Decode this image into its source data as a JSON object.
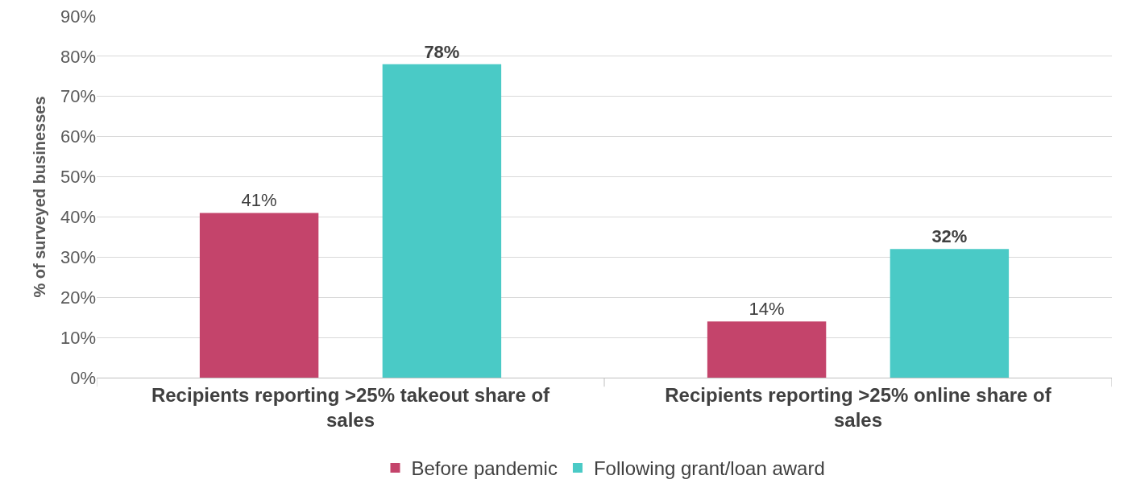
{
  "chart_data": {
    "type": "bar",
    "ylabel": "% of surveyed businesses",
    "categories": [
      "Recipients reporting >25% takeout share of sales",
      "Recipients reporting >25% online share of sales"
    ],
    "series": [
      {
        "name": "Before pandemic",
        "color": "#c4446b",
        "values": [
          41,
          14
        ],
        "value_labels": [
          "41%",
          "14%"
        ]
      },
      {
        "name": "Following grant/loan award",
        "color": "#4acac6",
        "values": [
          78,
          32
        ],
        "value_labels": [
          "78%",
          "32%"
        ]
      }
    ],
    "ylim": [
      0,
      90
    ],
    "yticks": [
      {
        "value": 0,
        "label": "0%"
      },
      {
        "value": 10,
        "label": "10%"
      },
      {
        "value": 20,
        "label": "20%"
      },
      {
        "value": 30,
        "label": "30%"
      },
      {
        "value": 40,
        "label": "40%"
      },
      {
        "value": 50,
        "label": "50%"
      },
      {
        "value": 60,
        "label": "60%"
      },
      {
        "value": 70,
        "label": "70%"
      },
      {
        "value": 80,
        "label": "80%"
      },
      {
        "value": 90,
        "label": "90%"
      }
    ],
    "grid": "y",
    "legend": "bottom"
  }
}
